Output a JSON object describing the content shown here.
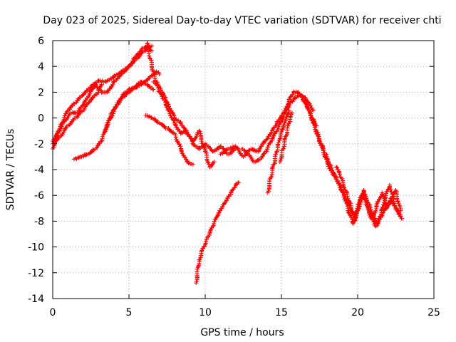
{
  "chart_data": {
    "type": "scatter",
    "title": "Day 023 of 2025, Sidereal Day-to-day VTEC variation (SDTVAR) for receiver chti",
    "xlabel": "GPS time / hours",
    "ylabel": "SDTVAR / TECUs",
    "xlim": [
      0,
      25
    ],
    "ylim": [
      -14,
      6
    ],
    "xticks": [
      0,
      5,
      10,
      15,
      20,
      25
    ],
    "yticks": [
      -14,
      -12,
      -10,
      -8,
      -6,
      -4,
      -2,
      0,
      2,
      4,
      6
    ],
    "grid": true,
    "marker": "+",
    "color": "#ff0000",
    "series": [
      {
        "name": "trace-1",
        "x": [
          0,
          0.3,
          0.6,
          1.0,
          1.5,
          2.0,
          2.5,
          3.0,
          3.5,
          4.0,
          4.5,
          5.0,
          5.3,
          5.6,
          5.9,
          6.2,
          6.5
        ],
        "y": [
          -2.4,
          -1.2,
          -0.4,
          0.6,
          1.2,
          1.8,
          2.4,
          2.9,
          2.8,
          3.2,
          3.6,
          4.0,
          4.6,
          5.0,
          5.4,
          5.6,
          5.2
        ]
      },
      {
        "name": "trace-2",
        "x": [
          0,
          0.4,
          0.8,
          1.2,
          1.6,
          2.0,
          2.4,
          2.8,
          3.2,
          3.6,
          4.0,
          4.5,
          5.0,
          5.5,
          6.0,
          6.5
        ],
        "y": [
          -1.8,
          -1.0,
          -0.2,
          0.4,
          0.4,
          1.0,
          1.8,
          2.6,
          2.0,
          2.0,
          2.8,
          3.4,
          4.0,
          4.6,
          5.2,
          5.6
        ]
      },
      {
        "name": "trace-3",
        "x": [
          0,
          0.5,
          1.0,
          1.5,
          2.0,
          2.5,
          3.0,
          3.2
        ],
        "y": [
          -2.0,
          -1.4,
          -0.6,
          0.0,
          0.6,
          1.4,
          2.0,
          2.6
        ]
      },
      {
        "name": "trace-4",
        "x": [
          1.4,
          1.8,
          2.3,
          2.8,
          3.2,
          3.5,
          3.8,
          4.2,
          4.6,
          5.0,
          5.5,
          6.0,
          6.4,
          6.8,
          7.0
        ],
        "y": [
          -3.2,
          -3.0,
          -2.8,
          -2.4,
          -1.8,
          -0.8,
          0.2,
          1.0,
          1.8,
          2.2,
          2.4,
          2.8,
          3.2,
          3.6,
          3.4
        ]
      },
      {
        "name": "trace-5",
        "x": [
          3.4,
          3.8,
          4.2,
          4.6,
          5.0,
          5.4,
          5.8,
          6.2,
          6.6
        ],
        "y": [
          -1.0,
          0.0,
          1.0,
          1.6,
          2.0,
          2.4,
          2.8,
          2.6,
          2.2
        ]
      },
      {
        "name": "trace-6",
        "x": [
          6.2,
          6.4,
          6.6,
          6.8,
          7.0,
          7.2,
          7.4,
          7.6,
          8.0,
          8.4,
          8.8,
          9.2,
          9.6,
          10.0,
          10.3,
          10.6
        ],
        "y": [
          5.8,
          4.6,
          3.6,
          2.8,
          2.4,
          2.0,
          1.6,
          1.0,
          0.0,
          -0.4,
          -1.2,
          -1.8,
          -1.0,
          -2.6,
          -3.8,
          -3.4
        ]
      },
      {
        "name": "trace-7",
        "x": [
          6.6,
          6.8,
          7.0,
          7.3,
          7.6,
          8.0,
          8.4,
          8.8,
          9.2,
          9.6,
          10.0,
          10.5,
          11.0,
          11.5,
          12.0
        ],
        "y": [
          2.8,
          2.6,
          2.0,
          1.4,
          0.6,
          -0.4,
          -1.2,
          -1.0,
          -2.0,
          -2.4,
          -2.0,
          -2.6,
          -2.2,
          -2.8,
          -2.4
        ]
      },
      {
        "name": "trace-8",
        "x": [
          6.1,
          6.5,
          7.0,
          7.5,
          8.0,
          8.4,
          8.8,
          9.2
        ],
        "y": [
          0.2,
          0.0,
          -0.4,
          -0.8,
          -1.2,
          -2.4,
          -3.4,
          -3.6
        ]
      },
      {
        "name": "trace-9",
        "x": [
          9.4,
          9.6,
          9.9,
          10.2,
          10.5,
          10.8,
          11.1,
          11.4,
          11.7,
          12.0,
          12.2
        ],
        "y": [
          -12.8,
          -11.0,
          -10.0,
          -9.2,
          -8.4,
          -7.6,
          -7.0,
          -6.4,
          -5.8,
          -5.2,
          -5.0
        ]
      },
      {
        "name": "trace-10",
        "x": [
          11.0,
          11.5,
          12.0,
          12.5,
          13.0,
          13.5,
          13.8,
          14.1,
          14.4,
          14.7,
          15.0,
          15.3,
          15.6,
          15.9,
          16.2,
          16.5,
          16.8,
          17.1
        ],
        "y": [
          -2.8,
          -2.4,
          -2.2,
          -3.0,
          -2.4,
          -2.6,
          -2.0,
          -1.6,
          -1.0,
          -0.4,
          0.2,
          0.6,
          1.2,
          1.6,
          1.8,
          1.6,
          1.2,
          0.6
        ]
      },
      {
        "name": "trace-11",
        "x": [
          12.4,
          12.8,
          13.2,
          13.6,
          14.0,
          14.4,
          14.8,
          15.2,
          15.5,
          15.8,
          16.1,
          16.4,
          16.7,
          17.0,
          17.3
        ],
        "y": [
          -2.4,
          -2.8,
          -3.4,
          -3.2,
          -2.6,
          -1.6,
          -0.8,
          0.4,
          1.4,
          2.0,
          2.0,
          1.4,
          0.8,
          0.0,
          -0.6
        ]
      },
      {
        "name": "trace-12",
        "x": [
          14.1,
          14.3,
          14.5,
          14.7,
          14.9,
          15.1,
          15.3,
          15.5
        ],
        "y": [
          -5.8,
          -4.6,
          -3.6,
          -2.6,
          -1.6,
          -0.8,
          -0.2,
          0.6
        ]
      },
      {
        "name": "trace-13",
        "x": [
          14.9,
          15.1,
          15.3,
          15.5,
          15.7
        ],
        "y": [
          -3.4,
          -2.4,
          -1.4,
          -0.4,
          0.4
        ]
      },
      {
        "name": "trace-14",
        "x": [
          16.5,
          16.8,
          17.1,
          17.4,
          17.7,
          18.0,
          18.3,
          18.6,
          18.9,
          19.2,
          19.5,
          19.8,
          20.1,
          20.4,
          20.7,
          21.0,
          21.3,
          21.6,
          21.9,
          22.2,
          22.5,
          22.8
        ],
        "y": [
          1.6,
          0.6,
          -0.4,
          -1.4,
          -2.4,
          -3.4,
          -4.2,
          -4.6,
          -5.4,
          -6.2,
          -7.0,
          -7.6,
          -6.6,
          -5.8,
          -6.6,
          -7.4,
          -8.2,
          -7.6,
          -6.8,
          -6.4,
          -7.0,
          -7.6
        ]
      },
      {
        "name": "trace-15",
        "x": [
          17.0,
          17.3,
          17.6,
          17.9,
          18.2,
          18.5,
          18.8,
          19.1,
          19.4,
          19.7,
          20.0,
          20.3,
          20.6,
          20.9,
          21.2,
          21.5,
          21.8,
          22.1,
          22.4,
          22.7,
          22.9
        ],
        "y": [
          0.0,
          -1.0,
          -2.0,
          -2.8,
          -3.6,
          -4.4,
          -5.2,
          -6.0,
          -7.2,
          -8.2,
          -7.2,
          -6.0,
          -6.8,
          -7.8,
          -8.4,
          -7.6,
          -6.2,
          -5.2,
          -6.6,
          -7.4,
          -7.8
        ]
      },
      {
        "name": "trace-16",
        "x": [
          18.6,
          18.9,
          19.2,
          19.5,
          19.8,
          20.1,
          20.4,
          20.7,
          21.0,
          21.3,
          21.6,
          21.9,
          22.2,
          22.5,
          22.8
        ],
        "y": [
          -3.8,
          -4.6,
          -5.6,
          -6.6,
          -8.0,
          -6.6,
          -5.6,
          -7.0,
          -7.8,
          -6.6,
          -5.8,
          -7.0,
          -6.2,
          -5.6,
          -7.2
        ]
      }
    ]
  }
}
